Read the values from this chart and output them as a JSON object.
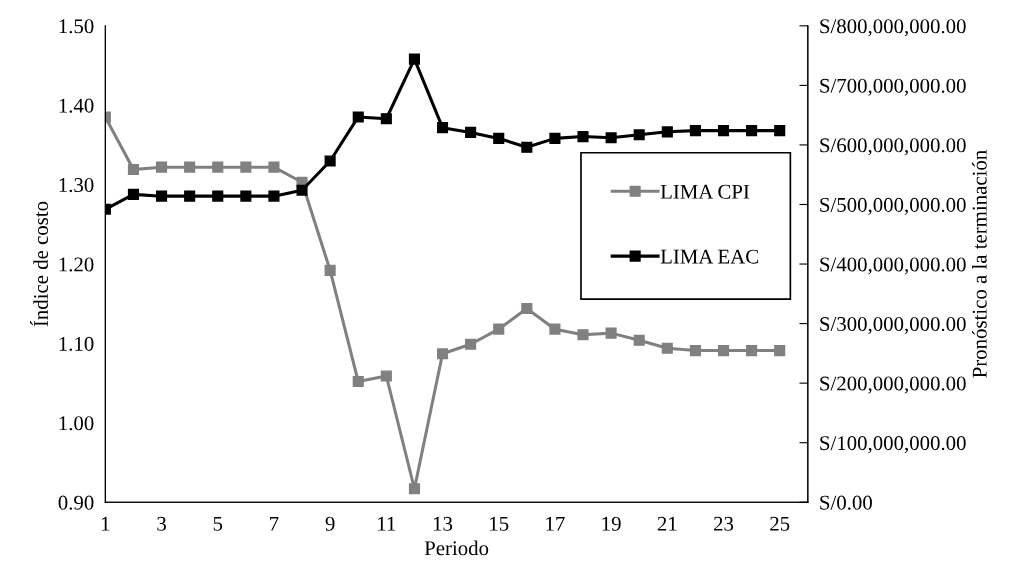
{
  "chart_data": {
    "type": "line",
    "xlabel": "Periodo",
    "ylabel": "Índice de costo",
    "y2label": "Pronóstico a la terminación",
    "x": [
      1,
      2,
      3,
      4,
      5,
      6,
      7,
      8,
      9,
      10,
      11,
      12,
      13,
      14,
      15,
      16,
      17,
      18,
      19,
      20,
      21,
      22,
      23,
      24,
      25
    ],
    "xlim": [
      1,
      26
    ],
    "xticks": [
      1,
      3,
      5,
      7,
      9,
      11,
      13,
      15,
      17,
      19,
      21,
      23,
      25
    ],
    "ylim": [
      0.9,
      1.5
    ],
    "yticks": [
      {
        "value": 0.9,
        "label": "0.90"
      },
      {
        "value": 1.0,
        "label": "1.00"
      },
      {
        "value": 1.1,
        "label": "1.10"
      },
      {
        "value": 1.2,
        "label": "1.20"
      },
      {
        "value": 1.3,
        "label": "1.30"
      },
      {
        "value": 1.4,
        "label": "1.40"
      },
      {
        "value": 1.5,
        "label": "1.50"
      }
    ],
    "y2lim": [
      0,
      800000000
    ],
    "y2ticks": [
      {
        "value": 0,
        "label": "S/0.00"
      },
      {
        "value": 100000000,
        "label": "S/100,000,000.00"
      },
      {
        "value": 200000000,
        "label": "S/200,000,000.00"
      },
      {
        "value": 300000000,
        "label": "S/300,000,000.00"
      },
      {
        "value": 400000000,
        "label": "S/400,000,000.00"
      },
      {
        "value": 500000000,
        "label": "S/500,000,000.00"
      },
      {
        "value": 600000000,
        "label": "S/600,000,000.00"
      },
      {
        "value": 700000000,
        "label": "S/700,000,000.00"
      },
      {
        "value": 800000000,
        "label": "S/800,000,000.00"
      }
    ],
    "marker": "square",
    "legend": "right",
    "grid": false,
    "series": [
      {
        "name": "LIMA CPI",
        "color": "#808080",
        "values": [
          1.385,
          1.319,
          1.322,
          1.322,
          1.322,
          1.322,
          1.322,
          1.303,
          1.192,
          1.052,
          1.059,
          0.917,
          1.087,
          1.099,
          1.118,
          1.144,
          1.118,
          1.111,
          1.113,
          1.104,
          1.094,
          1.091,
          1.091,
          1.091,
          1.091
        ]
      },
      {
        "name": "LIMA EAC",
        "color": "#000000",
        "axis": "y2",
        "values": [
          492000000,
          517000000,
          514000000,
          514000000,
          514000000,
          514000000,
          514000000,
          524000000,
          573000000,
          647000000,
          644000000,
          744000000,
          629000000,
          621000000,
          611000000,
          596000000,
          611000000,
          614000000,
          612000000,
          617000000,
          622000000,
          624000000,
          624000000,
          624000000,
          624000000
        ]
      }
    ]
  }
}
